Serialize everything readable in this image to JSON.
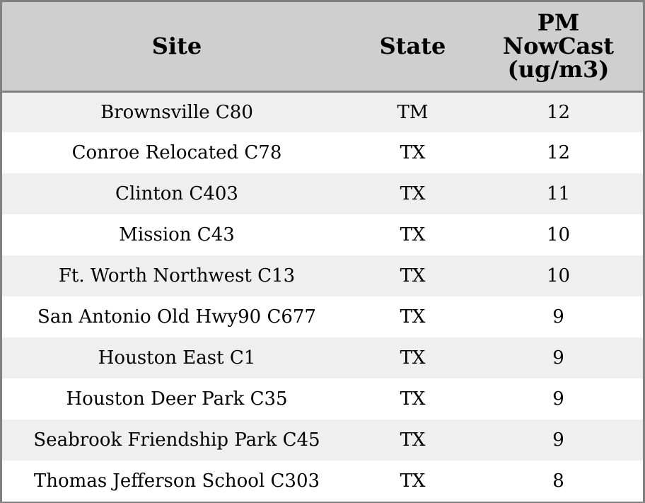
{
  "table": {
    "headers": {
      "site": "Site",
      "state": "State",
      "pm_line1": "PM",
      "pm_line2": "NowCast",
      "pm_line3": "(ug/m3)"
    },
    "rows": [
      {
        "site": "Brownsville C80",
        "state": "TM",
        "pm": "12"
      },
      {
        "site": "Conroe Relocated C78",
        "state": "TX",
        "pm": "12"
      },
      {
        "site": "Clinton C403",
        "state": "TX",
        "pm": "11"
      },
      {
        "site": "Mission C43",
        "state": "TX",
        "pm": "10"
      },
      {
        "site": "Ft. Worth Northwest C13",
        "state": "TX",
        "pm": "10"
      },
      {
        "site": "San Antonio Old Hwy90 C677",
        "state": "TX",
        "pm": "9"
      },
      {
        "site": "Houston East C1",
        "state": "TX",
        "pm": "9"
      },
      {
        "site": "Houston Deer Park C35",
        "state": "TX",
        "pm": "9"
      },
      {
        "site": "Seabrook Friendship Park C45",
        "state": "TX",
        "pm": "9"
      },
      {
        "site": "Thomas Jefferson School C303",
        "state": "TX",
        "pm": "8"
      }
    ]
  },
  "colors": {
    "header_background": "#cfcfcf",
    "row_alt_background": "#efefef",
    "border": "#808080"
  }
}
